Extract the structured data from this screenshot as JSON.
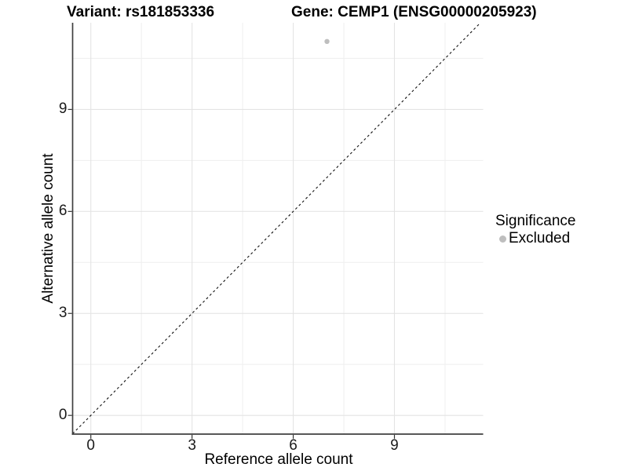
{
  "figure": {
    "background": "#ffffff",
    "title_left": "Variant: rs181853336",
    "title_right": "Gene: CEMP1 (ENSG00000205923)"
  },
  "axes": {
    "x_label": "Reference allele count",
    "y_label": "Alternative allele count"
  },
  "legend": {
    "title": "Significance",
    "items": [
      {
        "label": "Excluded",
        "marker": "circle-icon",
        "color": "#bebebe"
      }
    ]
  },
  "chart_data": {
    "type": "scatter",
    "title": "Variant: rs181853336 / Gene: CEMP1 (ENSG00000205923)",
    "xlabel": "Reference allele count",
    "ylabel": "Alternative allele count",
    "xlim": [
      -0.54,
      11.63
    ],
    "ylim": [
      -0.55,
      11.55
    ],
    "x_ticks": [
      0,
      3,
      6,
      9
    ],
    "y_ticks": [
      0,
      3,
      6,
      9
    ],
    "x_minor_ticks": [
      1.5,
      4.5,
      7.5,
      10.5
    ],
    "y_minor_ticks": [
      1.5,
      4.5,
      7.5,
      10.5
    ],
    "grid": {
      "major": true,
      "minor": true
    },
    "legend_position": "right",
    "series": [
      {
        "name": "Excluded",
        "color": "#bebebe",
        "points": [
          {
            "x": 7,
            "y": 11
          }
        ]
      }
    ],
    "reference_line": {
      "kind": "identity y=x",
      "style": "dashed",
      "color": "#111111"
    }
  },
  "colors": {
    "grid_major": "#e4e4e4",
    "grid_minor": "#f0f0f0",
    "axis_line": "#3f3f3f",
    "tick_mark": "#333333",
    "text": "#000000"
  }
}
